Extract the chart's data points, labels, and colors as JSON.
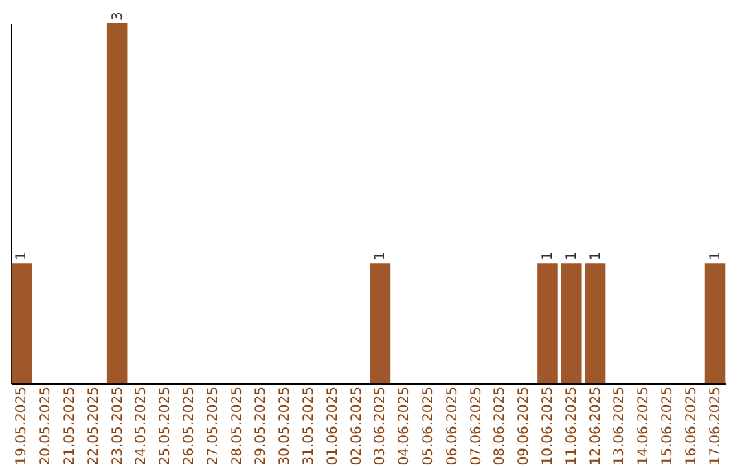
{
  "chart_data": {
    "type": "bar",
    "categories": [
      "19.05.2025",
      "20.05.2025",
      "21.05.2025",
      "22.05.2025",
      "23.05.2025",
      "24.05.2025",
      "25.05.2025",
      "26.05.2025",
      "27.05.2025",
      "28.05.2025",
      "29.05.2025",
      "30.05.2025",
      "31.05.2025",
      "01.06.2025",
      "02.06.2025",
      "03.06.2025",
      "04.06.2025",
      "05.06.2025",
      "06.06.2025",
      "07.06.2025",
      "08.06.2025",
      "09.06.2025",
      "10.06.2025",
      "11.06.2025",
      "12.06.2025",
      "13.06.2025",
      "14.06.2025",
      "15.06.2025",
      "16.06.2025",
      "17.06.2025"
    ],
    "values": [
      1,
      0,
      0,
      0,
      3,
      0,
      0,
      0,
      0,
      0,
      0,
      0,
      0,
      0,
      0,
      1,
      0,
      0,
      0,
      0,
      0,
      0,
      1,
      1,
      1,
      0,
      0,
      0,
      0,
      1
    ],
    "value_labels": [
      "1",
      null,
      null,
      null,
      "3",
      null,
      null,
      null,
      null,
      null,
      null,
      null,
      null,
      null,
      null,
      "1",
      null,
      null,
      null,
      null,
      null,
      null,
      "1",
      "1",
      "1",
      null,
      null,
      null,
      null,
      "1"
    ],
    "color": "#a0572a",
    "tick_labels": "x",
    "grid": false
  }
}
